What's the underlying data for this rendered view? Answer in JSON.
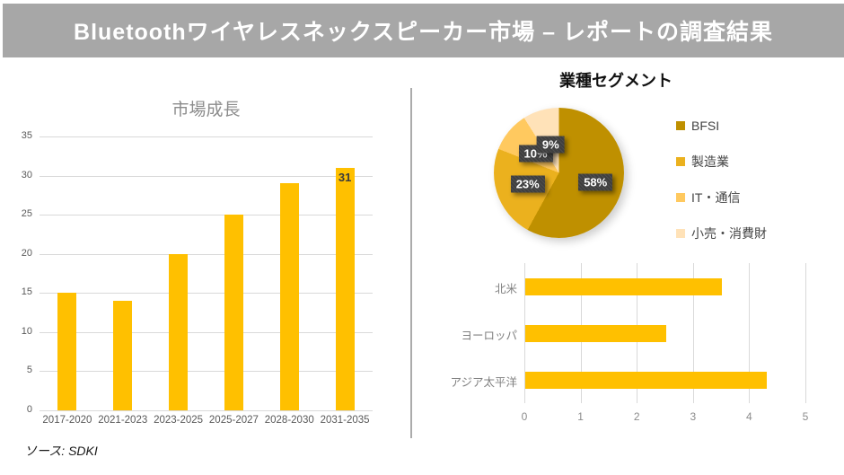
{
  "header": {
    "title": "Bluetoothワイヤレスネックスピーカー市場 – レポートの調査結果"
  },
  "source": {
    "label": "ソース: SDKI"
  },
  "colors": {
    "header_bg": "#A7A7A7",
    "bar": "#FFC000",
    "grid": "#D9D9D9",
    "axis_text": "#595959",
    "label_box": "#3F3F3F",
    "pie_slices": [
      "#BF9000",
      "#EBB11E",
      "#FFC95F",
      "#FFE2B8"
    ]
  },
  "chart_data": [
    {
      "type": "bar",
      "title": "市場成長",
      "categories": [
        "2017-2020",
        "2021-2023",
        "2023-2025",
        "2025-2027",
        "2028-2030",
        "2031-2035"
      ],
      "values": [
        15,
        14,
        20,
        25,
        29,
        31
      ],
      "yticks": [
        0,
        5,
        10,
        15,
        20,
        25,
        30,
        35
      ],
      "ylim": [
        0,
        35
      ],
      "xlabel": "",
      "ylabel": "",
      "grid": true,
      "legend_position": "none",
      "bar_color": "#FFC000",
      "data_labels": {
        "5": "31"
      }
    },
    {
      "type": "pie",
      "title": "業種セグメント",
      "labels": [
        "BFSI",
        "製造業",
        "IT・通信",
        "小売・消費財"
      ],
      "values": [
        58,
        23,
        10,
        9
      ],
      "slice_labels": [
        "58%",
        "23%",
        "10%",
        "9%"
      ],
      "colors": [
        "#BF9000",
        "#EBB11E",
        "#FFC95F",
        "#FFE2B8"
      ],
      "start_angle_deg": 0,
      "direction": "clockwise",
      "legend_position": "right"
    },
    {
      "type": "bar",
      "orientation": "horizontal",
      "title": "",
      "categories": [
        "北米",
        "ヨーロッパ",
        "アジア太平洋"
      ],
      "values": [
        3.5,
        2.5,
        4.3
      ],
      "xticks": [
        0,
        1,
        2,
        3,
        4,
        5
      ],
      "xlim": [
        0,
        5
      ],
      "grid": true,
      "legend_position": "none",
      "bar_color": "#FFC000"
    }
  ]
}
